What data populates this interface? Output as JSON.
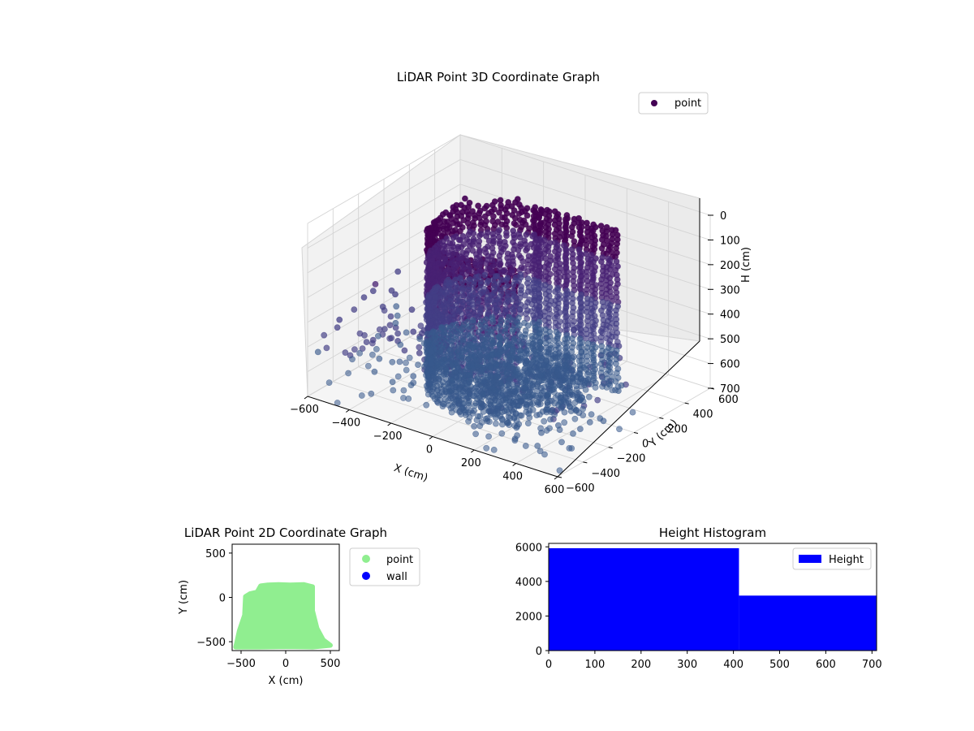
{
  "chart_data": [
    {
      "type": "scatter",
      "projection": "3d",
      "title": "LiDAR Point 3D Coordinate Graph",
      "xlabel": "X (cm)",
      "ylabel": "Y (cm)",
      "zlabel": "H (cm)",
      "xlim": [
        -600,
        600
      ],
      "ylim": [
        -600,
        600
      ],
      "zlim": [
        0,
        700
      ],
      "z_inverted": true,
      "x_ticks": [
        -600,
        -400,
        -200,
        0,
        200,
        400,
        600
      ],
      "y_ticks": [
        -600,
        -400,
        -200,
        0,
        200,
        400,
        600
      ],
      "z_ticks": [
        0,
        100,
        200,
        300,
        400,
        500,
        600,
        700
      ],
      "legend": {
        "placement": "upper-right",
        "entries": [
          "point"
        ]
      },
      "colormap": "viridis",
      "grid": true,
      "series": [
        {
          "name": "point",
          "color": "#440154",
          "description_of_shape": "ring of vertical point columns (walls) around a floor cloud",
          "sample_points": [
            {
              "x": -500,
              "y": 100,
              "z": 230
            },
            {
              "x": -450,
              "y": -150,
              "z": 400
            },
            {
              "x": -350,
              "y": 250,
              "z": 120
            },
            {
              "x": -250,
              "y": 300,
              "z": 60
            },
            {
              "x": -100,
              "y": 320,
              "z": 20
            },
            {
              "x": 50,
              "y": 330,
              "z": 10
            },
            {
              "x": 200,
              "y": 300,
              "z": 30
            },
            {
              "x": 300,
              "y": 150,
              "z": 80
            },
            {
              "x": 320,
              "y": -50,
              "z": 300
            },
            {
              "x": 250,
              "y": -200,
              "z": 550
            },
            {
              "x": 0,
              "y": 0,
              "z": 620
            },
            {
              "x": 100,
              "y": -100,
              "z": 640
            },
            {
              "x": -200,
              "y": -300,
              "z": 600
            },
            {
              "x": -500,
              "y": -550,
              "z": 690
            }
          ]
        }
      ]
    },
    {
      "type": "scatter",
      "title": "LiDAR Point 2D Coordinate Graph",
      "xlabel": "X (cm)",
      "ylabel": "Y (cm)",
      "xlim": [
        -600,
        600
      ],
      "ylim": [
        -600,
        600
      ],
      "x_ticks": [
        -500,
        0,
        500
      ],
      "y_ticks": [
        -500,
        0,
        500
      ],
      "legend": {
        "placement": "outside-right",
        "entries": [
          "point",
          "wall"
        ]
      },
      "series": [
        {
          "name": "point",
          "color": "#90ee90",
          "region_outline": [
            [
              -550,
              -520
            ],
            [
              -520,
              -380
            ],
            [
              -460,
              -200
            ],
            [
              -450,
              10
            ],
            [
              -400,
              40
            ],
            [
              -320,
              60
            ],
            [
              -280,
              130
            ],
            [
              -200,
              140
            ],
            [
              -80,
              145
            ],
            [
              50,
              140
            ],
            [
              200,
              145
            ],
            [
              300,
              120
            ],
            [
              300,
              -150
            ],
            [
              350,
              -350
            ],
            [
              420,
              -480
            ],
            [
              500,
              -540
            ],
            [
              300,
              -560
            ],
            [
              0,
              -555
            ],
            [
              -300,
              -560
            ],
            [
              -560,
              -560
            ]
          ]
        },
        {
          "name": "wall",
          "color": "#0000ff",
          "points": []
        }
      ]
    },
    {
      "type": "bar",
      "subtype": "histogram",
      "title": "Height Histogram",
      "xlabel": "",
      "ylabel": "",
      "xlim": [
        0,
        710
      ],
      "ylim": [
        0,
        6200
      ],
      "x_ticks": [
        0,
        100,
        200,
        300,
        400,
        500,
        600,
        700
      ],
      "y_ticks": [
        0,
        2000,
        4000,
        6000
      ],
      "legend": {
        "placement": "top-right",
        "entries": [
          "Height"
        ]
      },
      "series": [
        {
          "name": "Height",
          "color": "#0000ff",
          "bins": [
            {
              "start": 0,
              "end": 412,
              "count": 5920
            },
            {
              "start": 412,
              "end": 710,
              "count": 3180
            }
          ]
        }
      ]
    }
  ]
}
